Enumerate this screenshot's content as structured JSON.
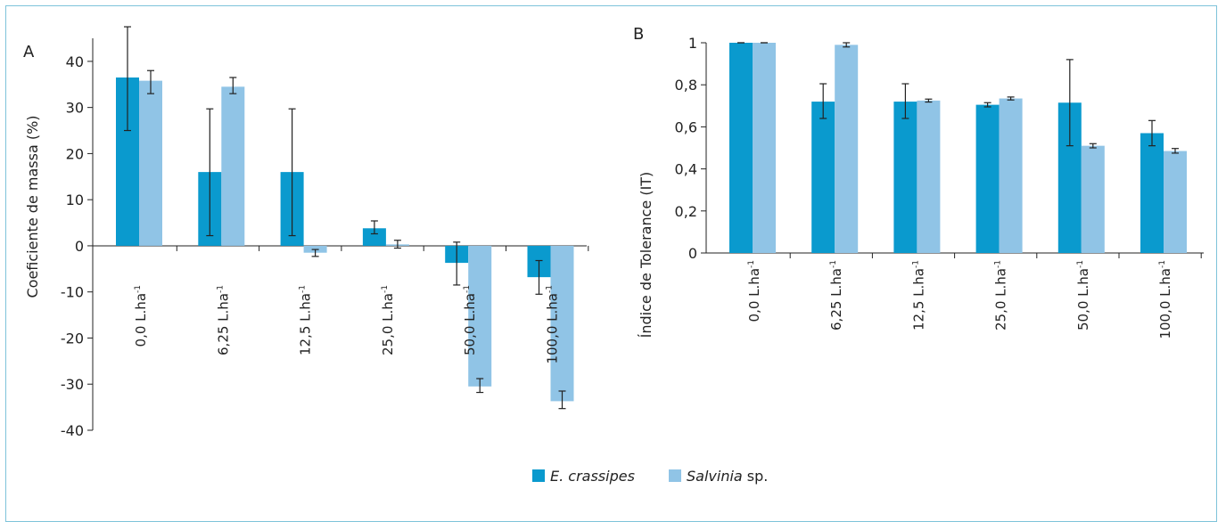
{
  "colors": {
    "ecrassipes": "#0a9ace",
    "salvinia": "#90c4e6",
    "frame": "#7ec3da"
  },
  "legend": [
    {
      "key": "ecrassipes",
      "label_italic": "E. crassipes",
      "label_rest": ""
    },
    {
      "key": "salvinia",
      "label_italic": "Salvinia",
      "label_rest": " sp."
    }
  ],
  "chart_data": [
    {
      "panel": "A",
      "type": "bar",
      "ylabel": "Coeficiente de massa (%)",
      "ylim": [
        -40,
        45
      ],
      "yticks": [
        "40",
        "30",
        "20",
        "10",
        "0",
        "-10",
        "-20",
        "-30",
        "-40"
      ],
      "categories": [
        "0,0 L.ha",
        "6,25 L.ha",
        "12,5 L.ha",
        "25,0 L.ha",
        "50,0 L.ha",
        "100,0 L.ha"
      ],
      "category_superscript": "-1",
      "series": [
        {
          "name": "E. crassipes",
          "values": [
            36.5,
            16,
            16,
            3.8,
            -3.7,
            -6.8
          ],
          "err_low": [
            25,
            2.2,
            2.2,
            2.6,
            -8.5,
            -10.5
          ],
          "err_high": [
            47.5,
            29.7,
            29.7,
            5.4,
            0.8,
            -3.2
          ]
        },
        {
          "name": "Salvinia sp.",
          "values": [
            35.8,
            34.5,
            -1.5,
            0.3,
            -30.5,
            -33.7
          ],
          "err_low": [
            33,
            33,
            -2.3,
            -0.5,
            -31.8,
            -35.3
          ],
          "err_high": [
            38,
            36.5,
            -0.8,
            1.2,
            -28.8,
            -31.5
          ]
        }
      ]
    },
    {
      "panel": "B",
      "type": "bar",
      "ylabel": "Índice de Tolerance (IT)",
      "ylim": [
        0,
        1
      ],
      "yticks": [
        "1",
        "0,8",
        "0,6",
        "0,4",
        "0,2",
        "0"
      ],
      "categories": [
        "0,0 L.ha",
        "6,25 L.ha",
        "12,5 L.ha",
        "25,0 L.ha",
        "50,0 L.ha",
        "100,0 L.ha"
      ],
      "category_superscript": "-1",
      "series": [
        {
          "name": "E. crassipes",
          "values": [
            1.0,
            0.72,
            0.72,
            0.705,
            0.715,
            0.57
          ],
          "err_low": [
            1.0,
            0.64,
            0.64,
            0.695,
            0.51,
            0.51
          ],
          "err_high": [
            1.0,
            0.805,
            0.805,
            0.715,
            0.92,
            0.63
          ]
        },
        {
          "name": "Salvinia sp.",
          "values": [
            1.0,
            0.99,
            0.725,
            0.735,
            0.51,
            0.485
          ],
          "err_low": [
            1.0,
            0.98,
            0.718,
            0.728,
            0.5,
            0.475
          ],
          "err_high": [
            1.0,
            1.0,
            0.732,
            0.742,
            0.52,
            0.497
          ]
        }
      ]
    }
  ]
}
